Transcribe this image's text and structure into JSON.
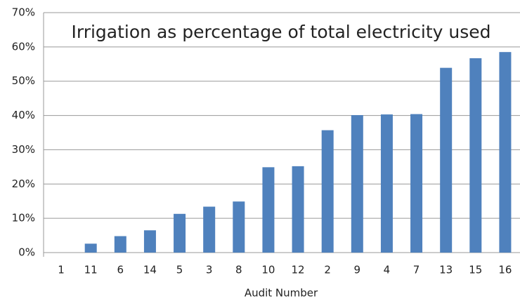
{
  "chart_data": {
    "type": "bar",
    "title": "Irrigation as percentage of total electricity used",
    "x_label": "Audit Number",
    "categories": [
      "1",
      "11",
      "6",
      "14",
      "5",
      "3",
      "8",
      "10",
      "12",
      "2",
      "9",
      "4",
      "7",
      "13",
      "15",
      "16"
    ],
    "values": [
      0,
      2.6,
      4.8,
      6.5,
      11.3,
      13.4,
      14.9,
      24.9,
      25.2,
      35.7,
      40.1,
      40.3,
      40.4,
      53.9,
      56.7,
      58.5
    ],
    "color": "#4f81bd",
    "ylim": [
      0,
      70
    ],
    "yticks": [
      {
        "value": 0,
        "label": "0%"
      },
      {
        "value": 10,
        "label": "10%"
      },
      {
        "value": 20,
        "label": "20%"
      },
      {
        "value": 30,
        "label": "30%"
      },
      {
        "value": 40,
        "label": "40%"
      },
      {
        "value": 50,
        "label": "50%"
      },
      {
        "value": 60,
        "label": "60%"
      },
      {
        "value": 70,
        "label": "70%"
      }
    ],
    "grid": true
  }
}
